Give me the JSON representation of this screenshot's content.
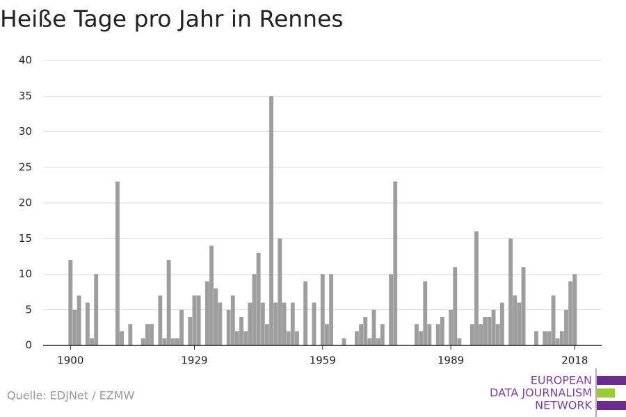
{
  "chart_data": {
    "type": "bar",
    "title": "Heiße Tage pro Jahr in Rennes",
    "x": [
      1900,
      1901,
      1902,
      1903,
      1904,
      1905,
      1906,
      1907,
      1908,
      1909,
      1910,
      1911,
      1912,
      1913,
      1914,
      1915,
      1916,
      1917,
      1918,
      1919,
      1920,
      1921,
      1922,
      1923,
      1924,
      1925,
      1926,
      1927,
      1928,
      1929,
      1930,
      1931,
      1932,
      1933,
      1934,
      1935,
      1936,
      1937,
      1938,
      1939,
      1940,
      1941,
      1942,
      1943,
      1944,
      1945,
      1946,
      1947,
      1948,
      1949,
      1950,
      1951,
      1952,
      1953,
      1954,
      1955,
      1956,
      1957,
      1958,
      1959,
      1960,
      1961,
      1962,
      1963,
      1964,
      1965,
      1966,
      1967,
      1968,
      1969,
      1970,
      1971,
      1972,
      1973,
      1974,
      1975,
      1976,
      1977,
      1978,
      1979,
      1980,
      1981,
      1982,
      1983,
      1984,
      1985,
      1986,
      1987,
      1988,
      1989,
      1990,
      1991,
      1992,
      1993,
      1994,
      1995,
      1996,
      1997,
      1998,
      1999,
      2000,
      2001,
      2002,
      2003,
      2004,
      2005,
      2006,
      2007,
      2008,
      2009,
      2010,
      2011,
      2012,
      2013,
      2014,
      2015,
      2016,
      2017,
      2018
    ],
    "values": [
      12,
      5,
      7,
      0,
      6,
      1,
      10,
      0,
      0,
      0,
      0,
      23,
      2,
      0,
      3,
      0,
      0,
      1,
      3,
      3,
      0,
      7,
      1,
      12,
      1,
      1,
      5,
      0,
      4,
      7,
      7,
      0,
      9,
      14,
      8,
      6,
      0,
      5,
      7,
      2,
      4,
      2,
      6,
      10,
      13,
      6,
      3,
      35,
      6,
      15,
      6,
      2,
      6,
      2,
      0,
      9,
      0,
      6,
      0,
      10,
      3,
      10,
      0,
      0,
      1,
      0,
      0,
      2,
      3,
      4,
      1,
      5,
      1,
      3,
      0,
      10,
      23,
      0,
      0,
      0,
      0,
      3,
      2,
      9,
      3,
      0,
      3,
      4,
      0,
      5,
      11,
      1,
      0,
      0,
      3,
      16,
      3,
      4,
      4,
      5,
      3,
      6,
      0,
      15,
      7,
      6,
      11,
      0,
      0,
      2,
      0,
      2,
      2,
      7,
      1,
      2,
      5,
      9,
      10
    ],
    "color": "#9e9e9e",
    "xlim": [
      1893.6,
      2024.3
    ],
    "xticks": [
      1900,
      1929,
      1959,
      1989,
      2018
    ],
    "ylim": [
      0,
      40
    ],
    "yticks": [
      0,
      5,
      10,
      15,
      20,
      25,
      30,
      35,
      40
    ],
    "grid": true,
    "source": "Quelle: EDJNet / EZMW",
    "logo": [
      "EUROPEAN",
      "DATA JOURNALISM",
      "NETWORK"
    ]
  }
}
